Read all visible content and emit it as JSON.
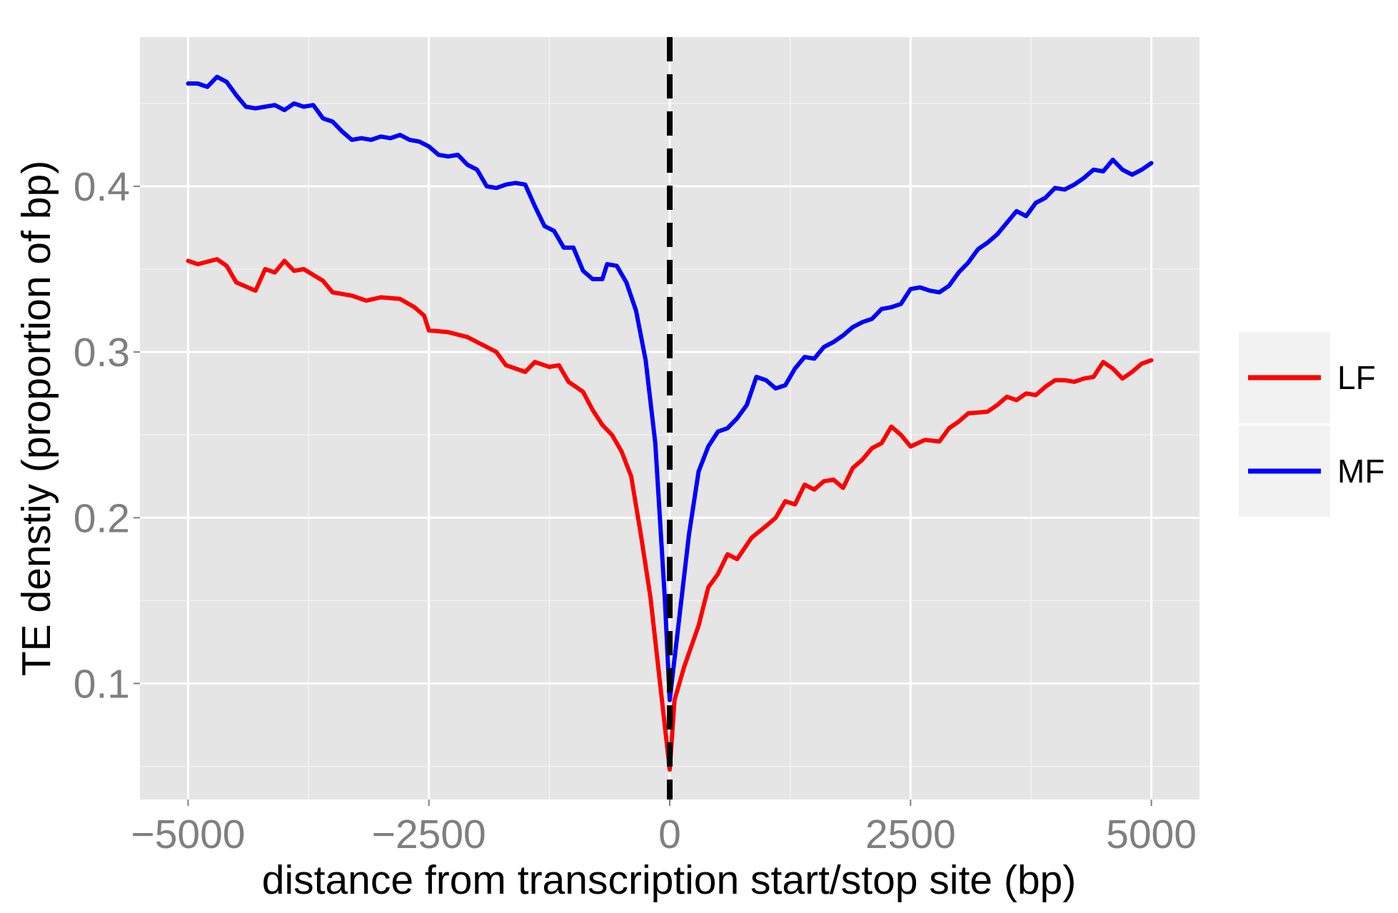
{
  "chart_data": {
    "type": "line",
    "title": "",
    "xlabel": "distance from transcription start/stop site (bp)",
    "ylabel": "TE denstiy (proportion of bp)",
    "xlim": [
      -5500,
      5500
    ],
    "ylim": [
      0.03,
      0.49
    ],
    "x_ticks": [
      -5000,
      -2500,
      0,
      2500,
      5000
    ],
    "x_tick_labels": [
      "−5000",
      "−2500",
      "0",
      "2500",
      "5000"
    ],
    "y_ticks": [
      0.1,
      0.2,
      0.3,
      0.4
    ],
    "y_tick_labels": [
      "0.1",
      "0.2",
      "0.3",
      "0.4"
    ],
    "grid": true,
    "background": "#e5e5e5",
    "reference_line": {
      "x": 0,
      "style": "dashed",
      "color": "#000000"
    },
    "legend": {
      "position": "right",
      "entries": [
        "LF",
        "MF"
      ]
    },
    "series": [
      {
        "name": "LF",
        "color": "#ff0000",
        "points": [
          [
            -5000,
            0.355
          ],
          [
            -4900,
            0.353
          ],
          [
            -4700,
            0.356
          ],
          [
            -4600,
            0.352
          ],
          [
            -4500,
            0.342
          ],
          [
            -4300,
            0.337
          ],
          [
            -4200,
            0.35
          ],
          [
            -4100,
            0.348
          ],
          [
            -4000,
            0.355
          ],
          [
            -3900,
            0.349
          ],
          [
            -3800,
            0.35
          ],
          [
            -3600,
            0.343
          ],
          [
            -3500,
            0.336
          ],
          [
            -3300,
            0.334
          ],
          [
            -3150,
            0.331
          ],
          [
            -3000,
            0.333
          ],
          [
            -2800,
            0.332
          ],
          [
            -2650,
            0.327
          ],
          [
            -2550,
            0.322
          ],
          [
            -2500,
            0.313
          ],
          [
            -2300,
            0.312
          ],
          [
            -2100,
            0.309
          ],
          [
            -2000,
            0.306
          ],
          [
            -1800,
            0.3
          ],
          [
            -1700,
            0.292
          ],
          [
            -1500,
            0.288
          ],
          [
            -1400,
            0.294
          ],
          [
            -1250,
            0.291
          ],
          [
            -1150,
            0.292
          ],
          [
            -1050,
            0.282
          ],
          [
            -900,
            0.276
          ],
          [
            -800,
            0.265
          ],
          [
            -700,
            0.256
          ],
          [
            -600,
            0.25
          ],
          [
            -500,
            0.24
          ],
          [
            -400,
            0.225
          ],
          [
            -300,
            0.19
          ],
          [
            -200,
            0.152
          ],
          [
            -100,
            0.1
          ],
          [
            0,
            0.048
          ],
          [
            50,
            0.09
          ],
          [
            150,
            0.11
          ],
          [
            300,
            0.135
          ],
          [
            400,
            0.158
          ],
          [
            500,
            0.166
          ],
          [
            600,
            0.178
          ],
          [
            700,
            0.175
          ],
          [
            850,
            0.188
          ],
          [
            1000,
            0.195
          ],
          [
            1100,
            0.2
          ],
          [
            1200,
            0.21
          ],
          [
            1300,
            0.208
          ],
          [
            1400,
            0.22
          ],
          [
            1500,
            0.217
          ],
          [
            1600,
            0.222
          ],
          [
            1700,
            0.223
          ],
          [
            1800,
            0.218
          ],
          [
            1900,
            0.23
          ],
          [
            2000,
            0.235
          ],
          [
            2100,
            0.242
          ],
          [
            2200,
            0.245
          ],
          [
            2300,
            0.255
          ],
          [
            2400,
            0.25
          ],
          [
            2500,
            0.243
          ],
          [
            2650,
            0.247
          ],
          [
            2800,
            0.246
          ],
          [
            2900,
            0.254
          ],
          [
            3000,
            0.258
          ],
          [
            3100,
            0.263
          ],
          [
            3300,
            0.264
          ],
          [
            3400,
            0.268
          ],
          [
            3500,
            0.273
          ],
          [
            3600,
            0.271
          ],
          [
            3700,
            0.275
          ],
          [
            3800,
            0.274
          ],
          [
            3900,
            0.279
          ],
          [
            4000,
            0.283
          ],
          [
            4100,
            0.283
          ],
          [
            4200,
            0.282
          ],
          [
            4300,
            0.284
          ],
          [
            4400,
            0.285
          ],
          [
            4500,
            0.294
          ],
          [
            4600,
            0.29
          ],
          [
            4700,
            0.284
          ],
          [
            4800,
            0.288
          ],
          [
            4900,
            0.293
          ],
          [
            5000,
            0.295
          ]
        ]
      },
      {
        "name": "MF",
        "color": "#0000ff",
        "points": [
          [
            -5000,
            0.462
          ],
          [
            -4900,
            0.462
          ],
          [
            -4800,
            0.46
          ],
          [
            -4700,
            0.466
          ],
          [
            -4600,
            0.463
          ],
          [
            -4500,
            0.455
          ],
          [
            -4400,
            0.448
          ],
          [
            -4300,
            0.447
          ],
          [
            -4200,
            0.448
          ],
          [
            -4100,
            0.449
          ],
          [
            -4000,
            0.446
          ],
          [
            -3900,
            0.45
          ],
          [
            -3800,
            0.448
          ],
          [
            -3700,
            0.449
          ],
          [
            -3600,
            0.441
          ],
          [
            -3500,
            0.439
          ],
          [
            -3400,
            0.433
          ],
          [
            -3300,
            0.428
          ],
          [
            -3200,
            0.429
          ],
          [
            -3100,
            0.428
          ],
          [
            -3000,
            0.43
          ],
          [
            -2900,
            0.429
          ],
          [
            -2800,
            0.431
          ],
          [
            -2700,
            0.428
          ],
          [
            -2600,
            0.427
          ],
          [
            -2500,
            0.424
          ],
          [
            -2400,
            0.419
          ],
          [
            -2300,
            0.418
          ],
          [
            -2200,
            0.419
          ],
          [
            -2100,
            0.413
          ],
          [
            -2000,
            0.41
          ],
          [
            -1900,
            0.4
          ],
          [
            -1800,
            0.399
          ],
          [
            -1700,
            0.401
          ],
          [
            -1600,
            0.402
          ],
          [
            -1500,
            0.401
          ],
          [
            -1400,
            0.388
          ],
          [
            -1300,
            0.376
          ],
          [
            -1200,
            0.373
          ],
          [
            -1100,
            0.363
          ],
          [
            -1000,
            0.363
          ],
          [
            -900,
            0.349
          ],
          [
            -800,
            0.344
          ],
          [
            -700,
            0.344
          ],
          [
            -650,
            0.353
          ],
          [
            -550,
            0.352
          ],
          [
            -450,
            0.342
          ],
          [
            -350,
            0.325
          ],
          [
            -250,
            0.295
          ],
          [
            -150,
            0.245
          ],
          [
            -50,
            0.15
          ],
          [
            0,
            0.09
          ],
          [
            100,
            0.14
          ],
          [
            200,
            0.19
          ],
          [
            300,
            0.228
          ],
          [
            400,
            0.243
          ],
          [
            500,
            0.252
          ],
          [
            600,
            0.254
          ],
          [
            700,
            0.26
          ],
          [
            800,
            0.268
          ],
          [
            900,
            0.285
          ],
          [
            1000,
            0.283
          ],
          [
            1100,
            0.278
          ],
          [
            1200,
            0.28
          ],
          [
            1300,
            0.29
          ],
          [
            1400,
            0.297
          ],
          [
            1500,
            0.296
          ],
          [
            1600,
            0.303
          ],
          [
            1700,
            0.306
          ],
          [
            1800,
            0.31
          ],
          [
            1900,
            0.315
          ],
          [
            2000,
            0.318
          ],
          [
            2100,
            0.32
          ],
          [
            2200,
            0.326
          ],
          [
            2300,
            0.327
          ],
          [
            2400,
            0.329
          ],
          [
            2500,
            0.338
          ],
          [
            2600,
            0.339
          ],
          [
            2700,
            0.337
          ],
          [
            2800,
            0.336
          ],
          [
            2900,
            0.34
          ],
          [
            3000,
            0.348
          ],
          [
            3100,
            0.354
          ],
          [
            3200,
            0.362
          ],
          [
            3300,
            0.366
          ],
          [
            3400,
            0.371
          ],
          [
            3500,
            0.378
          ],
          [
            3600,
            0.385
          ],
          [
            3700,
            0.382
          ],
          [
            3800,
            0.39
          ],
          [
            3900,
            0.393
          ],
          [
            4000,
            0.399
          ],
          [
            4100,
            0.398
          ],
          [
            4200,
            0.401
          ],
          [
            4300,
            0.405
          ],
          [
            4400,
            0.41
          ],
          [
            4500,
            0.409
          ],
          [
            4600,
            0.416
          ],
          [
            4700,
            0.41
          ],
          [
            4800,
            0.407
          ],
          [
            4900,
            0.41
          ],
          [
            5000,
            0.414
          ]
        ]
      }
    ]
  }
}
